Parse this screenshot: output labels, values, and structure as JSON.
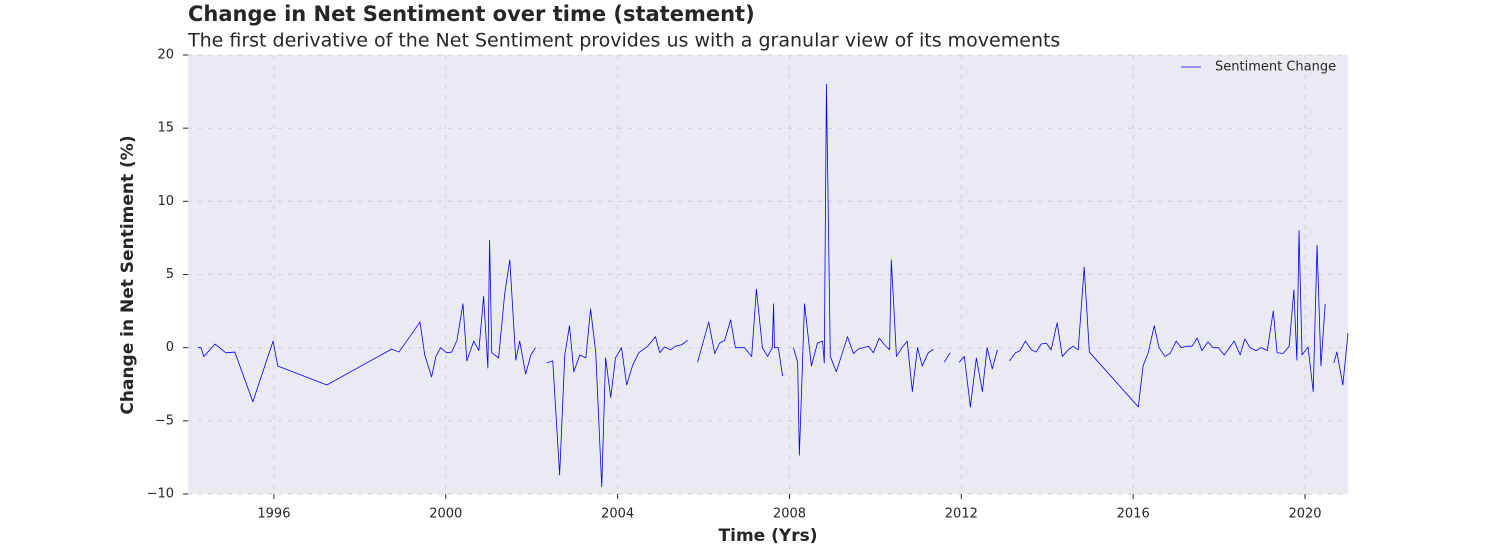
{
  "chart_data": {
    "type": "line",
    "title": "Change in Net Sentiment over time (statement)",
    "subtitle": "The first derivative of the Net Sentiment provides us with a granular view of its movements",
    "x_label": "Time (Yrs)",
    "y_label": "Change in Net Sentiment (%)",
    "x": [
      1994.23,
      1994.3,
      1994.37,
      1994.63,
      1994.88,
      1995.09,
      1995.51,
      1995.98,
      1996.09,
      1997.23,
      1998.74,
      1998.91,
      1999.4,
      1999.51,
      1999.67,
      1999.77,
      1999.88,
      2000.02,
      2000.14,
      2000.26,
      2000.4,
      2000.49,
      2000.65,
      2000.77,
      2000.88,
      2000.98,
      2001.02,
      2001.07,
      2001.23,
      2001.37,
      2001.49,
      2001.63,
      2001.72,
      2001.86,
      2001.98,
      2002.09,
      2002.23,
      2002.35,
      2002.49,
      2002.65,
      2002.77,
      2002.88,
      2002.98,
      2003.12,
      2003.26,
      2003.37,
      2003.49,
      2003.63,
      2003.72,
      2003.84,
      2003.95,
      2004.09,
      2004.21,
      2004.35,
      2004.49,
      2004.7,
      2004.88,
      2004.98,
      2005.09,
      2005.23,
      2005.35,
      2005.49,
      2005.63,
      2005.74,
      2005.86,
      2006.12,
      2006.26,
      2006.37,
      2006.49,
      2006.63,
      2006.74,
      2006.95,
      2007.12,
      2007.23,
      2007.37,
      2007.49,
      2007.6,
      2007.63,
      2007.65,
      2007.74,
      2007.84,
      2007.98,
      2008.09,
      2008.19,
      2008.23,
      2008.35,
      2008.51,
      2008.65,
      2008.77,
      2008.81,
      2008.86,
      2008.95,
      2009.09,
      2009.35,
      2009.49,
      2009.6,
      2009.84,
      2009.95,
      2010.09,
      2010.21,
      2010.33,
      2010.37,
      2010.49,
      2010.63,
      2010.74,
      2010.86,
      2010.98,
      2011.09,
      2011.23,
      2011.35,
      2011.47,
      2011.6,
      2011.74,
      2011.85,
      2011.95,
      2012.07,
      2012.21,
      2012.35,
      2012.49,
      2012.6,
      2012.72,
      2012.84,
      2012.98,
      2013.12,
      2013.26,
      2013.37,
      2013.49,
      2013.63,
      2013.74,
      2013.86,
      2013.98,
      2014.09,
      2014.23,
      2014.35,
      2014.49,
      2014.6,
      2014.72,
      2014.86,
      2014.98,
      2016.12,
      2016.23,
      2016.35,
      2016.49,
      2016.6,
      2016.74,
      2016.86,
      2017.0,
      2017.12,
      2017.26,
      2017.37,
      2017.49,
      2017.6,
      2017.74,
      2017.86,
      2017.98,
      2018.12,
      2018.35,
      2018.49,
      2018.6,
      2018.72,
      2018.86,
      2018.98,
      2019.12,
      2019.26,
      2019.35,
      2019.49,
      2019.63,
      2019.74,
      2019.81,
      2019.86,
      2019.93,
      2020.07,
      2020.19,
      2020.28,
      2020.37,
      2020.47,
      2020.57,
      2020.67,
      2020.74,
      2020.88,
      2021.0
    ],
    "series": [
      {
        "name": "Sentiment Change",
        "color": "#0000ff",
        "values": [
          0,
          0,
          -0.6,
          0.25,
          -0.35,
          -0.3,
          -3.7,
          0.45,
          -1.25,
          -2.55,
          -0.1,
          -0.3,
          1.75,
          -0.5,
          -2.0,
          -0.6,
          0,
          -0.35,
          -0.3,
          0.5,
          3.0,
          -0.9,
          0.45,
          -0.2,
          3.5,
          -1.4,
          7.35,
          -0.35,
          -0.7,
          3.65,
          6.0,
          -0.85,
          0.45,
          -1.8,
          -0.5,
          0,
          null,
          -1.05,
          -0.9,
          -8.7,
          -0.5,
          1.5,
          -1.65,
          -0.5,
          -0.7,
          2.65,
          -0.3,
          -9.5,
          -0.7,
          -3.4,
          -0.7,
          0,
          -2.55,
          -1.2,
          -0.35,
          0.1,
          0.75,
          -0.35,
          0.05,
          -0.15,
          0.1,
          0.2,
          0.5,
          null,
          -1.0,
          1.75,
          -0.4,
          0.3,
          0.5,
          1.9,
          0,
          0,
          -0.6,
          4.0,
          0,
          -0.6,
          0,
          3.0,
          0,
          0,
          -1.95,
          null,
          0,
          -1.0,
          -7.35,
          3.0,
          -1.25,
          0.3,
          0.45,
          -1.05,
          18.0,
          -0.6,
          -1.65,
          0.75,
          -0.4,
          -0.1,
          0.1,
          -0.35,
          0.65,
          0.2,
          -0.15,
          6.0,
          -0.6,
          0.05,
          0.45,
          -3.0,
          0,
          -1.25,
          -0.35,
          -0.1,
          null,
          -1.0,
          -0.35,
          null,
          -1.0,
          -0.6,
          -4.05,
          -0.7,
          -3.0,
          0,
          -1.45,
          -0.15,
          null,
          -0.9,
          -0.35,
          -0.2,
          0.45,
          -0.15,
          -0.3,
          0.25,
          0.3,
          -0.15,
          1.7,
          -0.6,
          -0.15,
          0.1,
          -0.15,
          5.5,
          -0.3,
          -4.05,
          -1.25,
          -0.35,
          1.5,
          0,
          -0.6,
          -0.4,
          0.45,
          0,
          0.1,
          0.1,
          0.65,
          -0.2,
          0.4,
          0,
          0,
          -0.5,
          0.45,
          -0.5,
          0.6,
          0,
          -0.2,
          0,
          -0.2,
          2.5,
          -0.35,
          -0.4,
          0.1,
          3.95,
          -0.85,
          8.0,
          -0.5,
          0.05,
          -3.0,
          7.0,
          -1.25,
          3.0,
          null,
          -1.05,
          -0.3,
          -2.55,
          1.0
        ]
      }
    ],
    "xlim": [
      1994.0,
      2021.0
    ],
    "ylim": [
      -10,
      20
    ],
    "xticks": [
      1996,
      2000,
      2004,
      2008,
      2012,
      2016,
      2020
    ],
    "yticks": [
      {
        "value": -10,
        "label": "−10"
      },
      {
        "value": -5,
        "label": "−5"
      },
      0,
      5,
      10,
      15,
      20
    ],
    "grid": true,
    "legend": "upper right"
  }
}
